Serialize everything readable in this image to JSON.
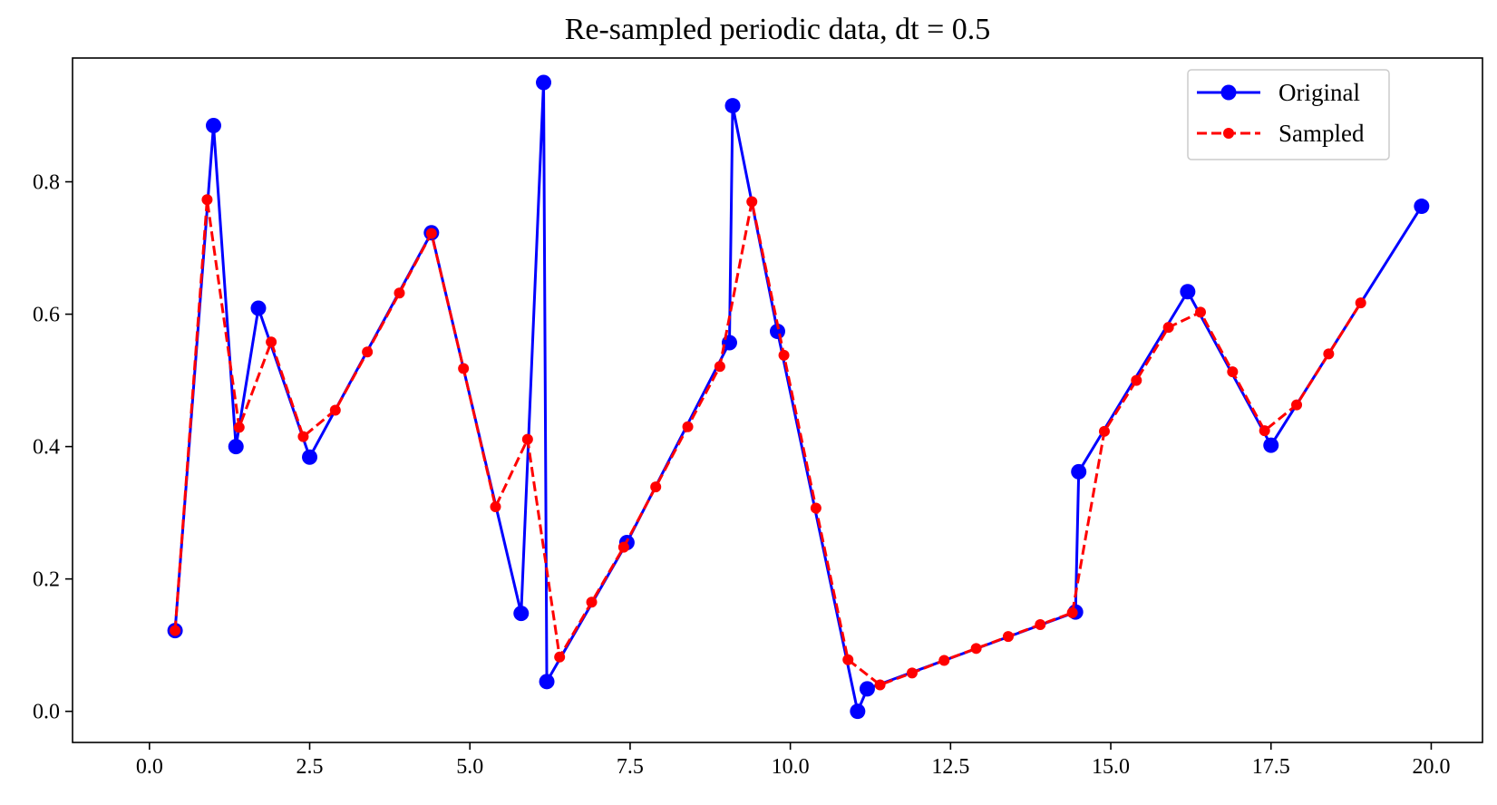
{
  "chart_data": {
    "type": "line",
    "title": "Re-sampled periodic data, dt = 0.5",
    "xlabel": "",
    "ylabel": "",
    "xlim": [
      -1.2,
      20.8
    ],
    "ylim": [
      -0.047,
      0.987
    ],
    "xticks": [
      0.0,
      2.5,
      5.0,
      7.5,
      10.0,
      12.5,
      15.0,
      17.5,
      20.0
    ],
    "xtick_labels": [
      "0.0",
      "2.5",
      "5.0",
      "7.5",
      "10.0",
      "12.5",
      "15.0",
      "17.5",
      "20.0"
    ],
    "yticks": [
      0.0,
      0.2,
      0.4,
      0.6,
      0.8
    ],
    "ytick_labels": [
      "0.0",
      "0.2",
      "0.4",
      "0.6",
      "0.8"
    ],
    "grid": false,
    "legend_position": "top-right",
    "series": [
      {
        "name": "Original",
        "color": "#0000ff",
        "style": "solid",
        "marker": "circle-large",
        "x": [
          0.4,
          1.0,
          1.35,
          1.7,
          2.5,
          4.4,
          5.8,
          6.15,
          6.2,
          7.45,
          9.05,
          9.1,
          9.8,
          11.05,
          11.2,
          14.45,
          14.5,
          16.2,
          17.5,
          19.85
        ],
        "y": [
          0.122,
          0.885,
          0.4,
          0.609,
          0.384,
          0.723,
          0.148,
          0.95,
          0.045,
          0.255,
          0.557,
          0.915,
          0.574,
          0.0,
          0.034,
          0.15,
          0.362,
          0.634,
          0.402,
          0.763
        ]
      },
      {
        "name": "Sampled",
        "color": "#ff0000",
        "style": "dashed",
        "marker": "circle-small",
        "x": [
          0.4,
          0.9,
          1.4,
          1.9,
          2.4,
          2.9,
          3.4,
          3.9,
          4.4,
          4.9,
          5.4,
          5.9,
          6.4,
          6.9,
          7.4,
          7.9,
          8.4,
          8.9,
          9.4,
          9.9,
          10.4,
          10.9,
          11.4,
          11.9,
          12.4,
          12.9,
          13.4,
          13.9,
          14.4,
          14.9,
          15.4,
          15.9,
          16.4,
          16.9,
          17.4,
          17.9,
          18.4,
          18.9
        ],
        "y": [
          0.122,
          0.773,
          0.429,
          0.558,
          0.415,
          0.455,
          0.543,
          0.632,
          0.722,
          0.518,
          0.309,
          0.411,
          0.082,
          0.165,
          0.248,
          0.339,
          0.43,
          0.521,
          0.77,
          0.538,
          0.307,
          0.078,
          0.04,
          0.058,
          0.077,
          0.095,
          0.113,
          0.131,
          0.149,
          0.423,
          0.5,
          0.58,
          0.603,
          0.513,
          0.424,
          0.463,
          0.54,
          0.617
        ]
      }
    ]
  }
}
